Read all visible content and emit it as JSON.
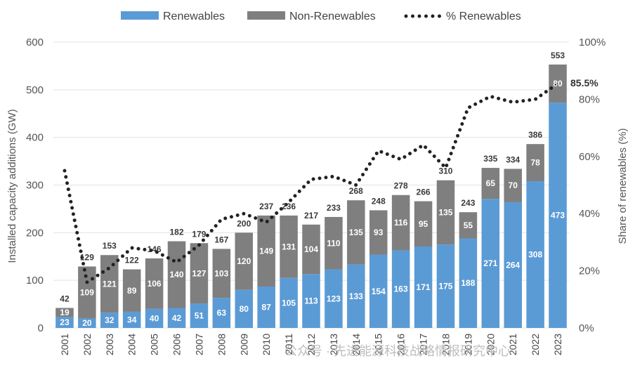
{
  "chart_data": {
    "type": "bar",
    "stacked": true,
    "categories": [
      "2001",
      "2002",
      "2003",
      "2004",
      "2005",
      "2006",
      "2007",
      "2008",
      "2009",
      "2010",
      "2011",
      "2012",
      "2013",
      "2014",
      "2015",
      "2016",
      "2017",
      "2018",
      "2019",
      "2020",
      "2021",
      "2022",
      "2023"
    ],
    "series": [
      {
        "name": "Renewables",
        "values": [
          23,
          20,
          32,
          34,
          40,
          42,
          51,
          63,
          80,
          87,
          105,
          113,
          123,
          133,
          154,
          163,
          171,
          175,
          188,
          271,
          264,
          308,
          473
        ],
        "color": "#5b9bd5"
      },
      {
        "name": "Non-Renewables",
        "values": [
          19,
          109,
          121,
          89,
          106,
          140,
          127,
          103,
          120,
          149,
          131,
          104,
          110,
          135,
          93,
          116,
          95,
          135,
          55,
          65,
          70,
          78,
          80
        ],
        "color": "#7f7f7f"
      }
    ],
    "totals": [
      42,
      129,
      153,
      122,
      146,
      182,
      179,
      167,
      200,
      237,
      236,
      217,
      233,
      268,
      248,
      278,
      266,
      310,
      243,
      335,
      334,
      386,
      553
    ],
    "line_series": {
      "name": "% Renewables",
      "axis": "right",
      "style": "dotted",
      "color": "#222222",
      "values": [
        55,
        16,
        21,
        28,
        27,
        23,
        29,
        38,
        40,
        37,
        44,
        52,
        53,
        50,
        62,
        59,
        64,
        56,
        77,
        81,
        79,
        80,
        85.5
      ]
    },
    "ylabel": "Installed capacity additions (GW)",
    "y2label": "Share of renewables (%)",
    "ylim": [
      0,
      600
    ],
    "y_ticks": [
      "0",
      "100",
      "200",
      "300",
      "400",
      "500",
      "600"
    ],
    "y2lim": [
      0,
      100
    ],
    "y2_ticks": [
      "0%",
      "20%",
      "40%",
      "60%",
      "80%",
      "100%"
    ],
    "annotation": "85.5%",
    "grid": true,
    "legend_position": "top"
  },
  "watermark": "公众号 · 先进能源科技战略情报研究中心"
}
